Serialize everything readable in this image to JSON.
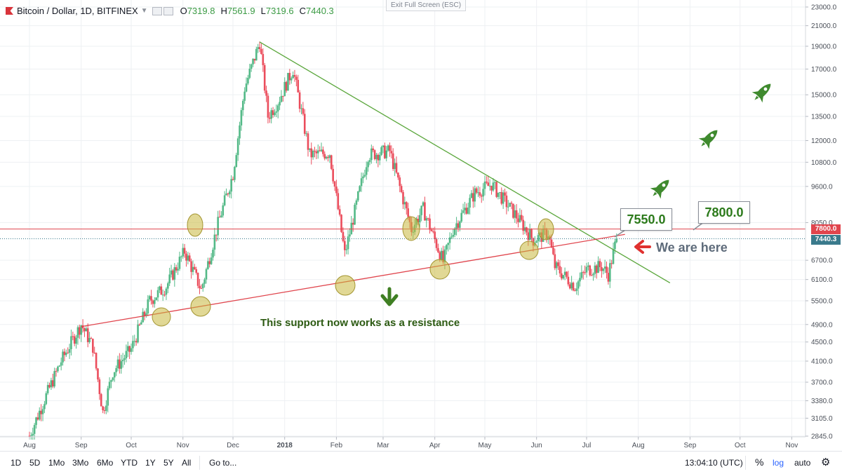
{
  "header": {
    "symbol": "Bitcoin / Dollar, 1D, BITFINEX",
    "open_label": "O",
    "open": "7319.8",
    "high_label": "H",
    "high": "7561.9",
    "low_label": "L",
    "low": "7319.6",
    "close_label": "C",
    "close": "7440.3",
    "exit_fullscreen": "Exit Full Screen (ESC)"
  },
  "annotations": {
    "callout_1": "7550.0",
    "callout_2": "7800.0",
    "we_are_here": "We are here",
    "support_text": "This support now works as a resistance",
    "red_price_tag": "7800.0",
    "blue_price_tag": "7440.3"
  },
  "bottom_bar": {
    "ranges": [
      "1D",
      "5D",
      "1Mo",
      "3Mo",
      "6Mo",
      "YTD",
      "1Y",
      "5Y",
      "All"
    ],
    "goto": "Go to...",
    "time": "13:04:10 (UTC)",
    "percent": "%",
    "log": "log",
    "auto": "auto"
  },
  "colors": {
    "up": "#53b987",
    "down": "#eb4d5c",
    "trend_green": "#5aa63b",
    "trend_red": "#e0454d",
    "circle_fill": "#c9b83e",
    "rocket": "#3f8a2e",
    "accent_log": "#2962ff"
  },
  "chart_data": {
    "type": "candlestick",
    "scale": "log",
    "y_tick_labels": [
      "23000.0",
      "21000.0",
      "19000.0",
      "17000.0",
      "15000.0",
      "13500.0",
      "12000.0",
      "10800.0",
      "9600.0",
      "8050.0",
      "6700.0",
      "6100.0",
      "5500.0",
      "4900.0",
      "4500.0",
      "4100.0",
      "3700.0",
      "3380.0",
      "3105.0",
      "2845.0"
    ],
    "x_tick_labels": [
      "Aug",
      "Sep",
      "Oct",
      "Nov",
      "Dec",
      "2018",
      "Feb",
      "Mar",
      "Apr",
      "May",
      "Jun",
      "Jul",
      "Aug",
      "Sep",
      "Oct",
      "Nov"
    ],
    "anchors": [
      {
        "date": "Aug 1 2017",
        "close": 2850
      },
      {
        "date": "Aug 10 2017",
        "close": 3400
      },
      {
        "date": "Aug 20 2017",
        "close": 4100
      },
      {
        "date": "Sep 1 2017",
        "close": 4900
      },
      {
        "date": "Sep 8 2017",
        "close": 4400
      },
      {
        "date": "Sep 14 2017",
        "close": 3200
      },
      {
        "date": "Sep 20 2017",
        "close": 3900
      },
      {
        "date": "Oct 1 2017",
        "close": 4350
      },
      {
        "date": "Oct 12 2017",
        "close": 5500
      },
      {
        "date": "Oct 22 2017",
        "close": 5900
      },
      {
        "date": "Nov 2 2017",
        "close": 7000
      },
      {
        "date": "Nov 12 2017",
        "close": 5800
      },
      {
        "date": "Nov 22 2017",
        "close": 8000
      },
      {
        "date": "Dec 1 2017",
        "close": 10200
      },
      {
        "date": "Dec 8 2017",
        "close": 15500
      },
      {
        "date": "Dec 17 2017",
        "close": 19400
      },
      {
        "date": "Dec 22 2017",
        "close": 13500
      },
      {
        "date": "Dec 28 2017",
        "close": 14500
      },
      {
        "date": "Jan 6 2018",
        "close": 17000
      },
      {
        "date": "Jan 16 2018",
        "close": 11200
      },
      {
        "date": "Jan 28 2018",
        "close": 11300
      },
      {
        "date": "Feb 6 2018",
        "close": 6900
      },
      {
        "date": "Feb 20 2018",
        "close": 11200
      },
      {
        "date": "Mar 5 2018",
        "close": 11400
      },
      {
        "date": "Mar 18 2018",
        "close": 7800
      },
      {
        "date": "Mar 25 2018",
        "close": 8600
      },
      {
        "date": "Apr 6 2018",
        "close": 6650
      },
      {
        "date": "Apr 12 2018",
        "close": 7800
      },
      {
        "date": "Apr 25 2018",
        "close": 9300
      },
      {
        "date": "May 5 2018",
        "close": 9700
      },
      {
        "date": "May 20 2018",
        "close": 8300
      },
      {
        "date": "May 30 2018",
        "close": 7400
      },
      {
        "date": "Jun 8 2018",
        "close": 7650
      },
      {
        "date": "Jun 12 2018",
        "close": 6500
      },
      {
        "date": "Jun 24 2018",
        "close": 5900
      },
      {
        "date": "Jul 1 2018",
        "close": 6400
      },
      {
        "date": "Jul 10 2018",
        "close": 6500
      },
      {
        "date": "Jul 14 2018",
        "close": 6250
      },
      {
        "date": "Jul 19 2018",
        "close": 7440.3
      }
    ],
    "price_lines": [
      {
        "label": "7800.0",
        "value": 7800
      },
      {
        "label": "7440.3",
        "value": 7440.3
      }
    ],
    "trendlines": [
      {
        "name": "descending-resistance",
        "from": {
          "date": "Dec 17 2017",
          "value": 19400
        },
        "to": {
          "date": "Aug 20 2018",
          "value": 6000
        }
      },
      {
        "name": "ascending-support",
        "from": {
          "date": "Sep 1 2017",
          "value": 4850
        },
        "to": {
          "date": "Jul 24 2018",
          "value": 7600
        }
      }
    ],
    "grid": true,
    "legend": "top-left"
  }
}
